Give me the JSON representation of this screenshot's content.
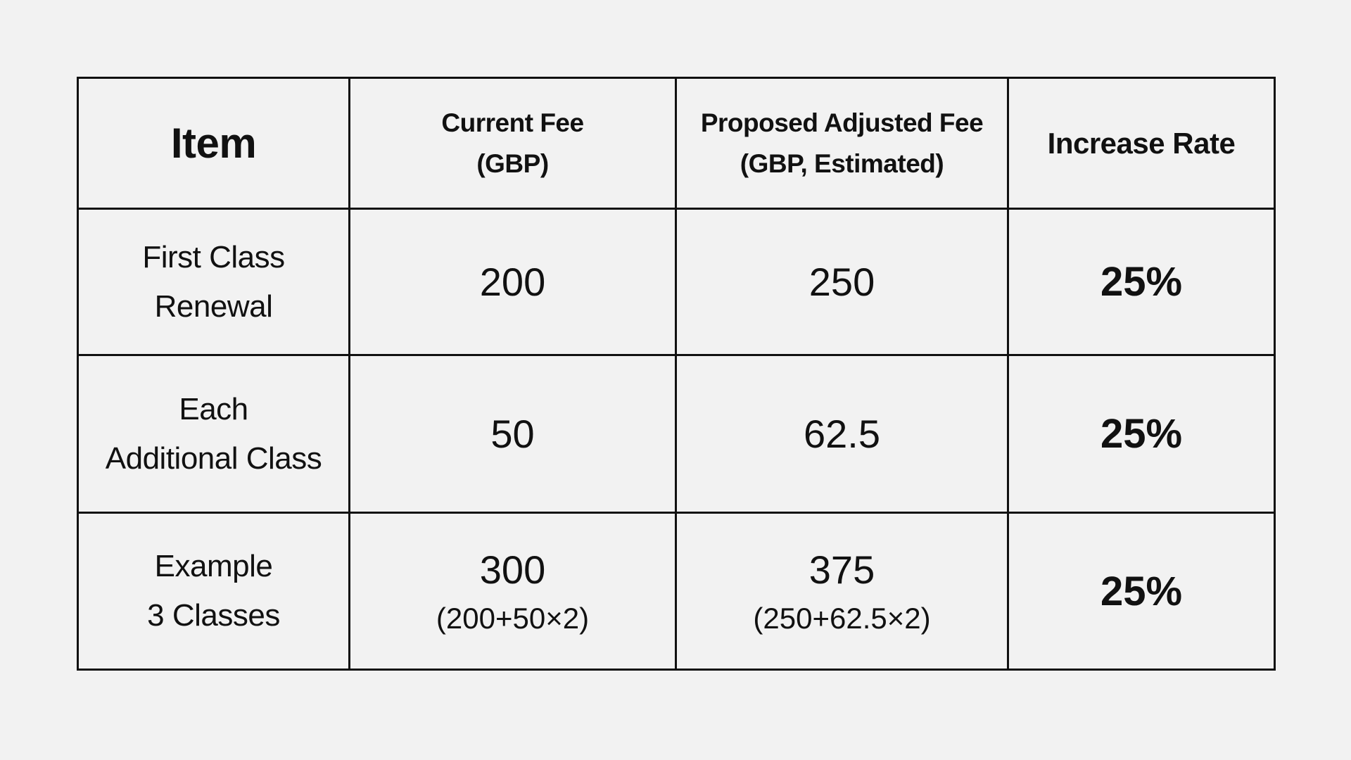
{
  "headers": {
    "item": "Item",
    "current_fee": [
      "Current Fee",
      "(GBP)"
    ],
    "proposed_fee": [
      "Proposed Adjusted Fee",
      "(GBP, Estimated)"
    ],
    "increase_rate": "Increase Rate"
  },
  "rows": [
    {
      "item": [
        "First Class",
        "Renewal"
      ],
      "current": "200",
      "current_note": "",
      "proposed": "250",
      "proposed_note": "",
      "rate": "25%"
    },
    {
      "item": [
        "Each",
        "Additional Class"
      ],
      "current": "50",
      "current_note": "",
      "proposed": "62.5",
      "proposed_note": "",
      "rate": "25%"
    },
    {
      "item": [
        "Example",
        "3 Classes"
      ],
      "current": "300",
      "current_note": "(200+50×2)",
      "proposed": "375",
      "proposed_note": "(250+62.5×2)",
      "rate": "25%"
    }
  ]
}
